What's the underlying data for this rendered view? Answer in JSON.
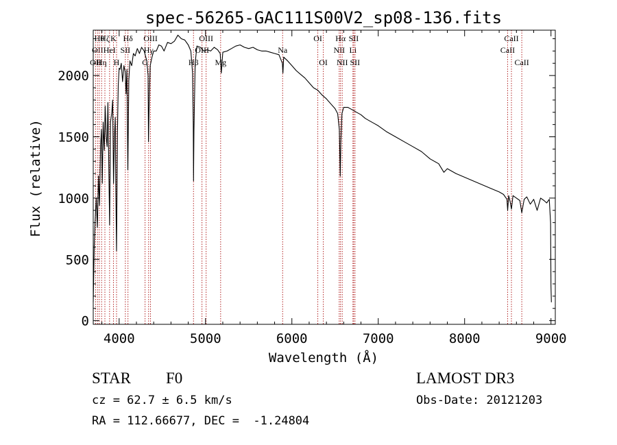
{
  "chart_data": {
    "type": "line",
    "title": "spec-56265-GAC111S00V2_sp08-136.fits",
    "xlabel": "Wavelength (Å)",
    "ylabel": "Flux (relative)",
    "xlim": [
      3700,
      9050
    ],
    "ylim": [
      -30,
      2370
    ],
    "xticks": [
      4000,
      5000,
      6000,
      7000,
      8000,
      9000
    ],
    "yticks": [
      0,
      500,
      1000,
      1500,
      2000
    ],
    "series": [
      {
        "name": "flux",
        "points": [
          [
            3700,
            150
          ],
          [
            3712,
            620
          ],
          [
            3722,
            820
          ],
          [
            3735,
            1000
          ],
          [
            3748,
            760
          ],
          [
            3760,
            1180
          ],
          [
            3772,
            940
          ],
          [
            3785,
            1420
          ],
          [
            3795,
            1560
          ],
          [
            3805,
            1120
          ],
          [
            3815,
            1620
          ],
          [
            3828,
            1390
          ],
          [
            3838,
            1750
          ],
          [
            3850,
            1500
          ],
          [
            3860,
            1420
          ],
          [
            3870,
            1780
          ],
          [
            3880,
            1250
          ],
          [
            3890,
            780
          ],
          [
            3900,
            1620
          ],
          [
            3915,
            1700
          ],
          [
            3925,
            1800
          ],
          [
            3935,
            1120
          ],
          [
            3945,
            1500
          ],
          [
            3955,
            1660
          ],
          [
            3962,
            1040
          ],
          [
            3970,
            570
          ],
          [
            3980,
            1540
          ],
          [
            3990,
            1920
          ],
          [
            4000,
            2060
          ],
          [
            4010,
            2050
          ],
          [
            4025,
            2100
          ],
          [
            4040,
            1950
          ],
          [
            4055,
            2080
          ],
          [
            4070,
            2030
          ],
          [
            4080,
            1850
          ],
          [
            4090,
            2050
          ],
          [
            4101,
            1230
          ],
          [
            4112,
            1960
          ],
          [
            4125,
            2120
          ],
          [
            4145,
            2080
          ],
          [
            4165,
            2180
          ],
          [
            4185,
            2160
          ],
          [
            4210,
            2220
          ],
          [
            4235,
            2180
          ],
          [
            4260,
            2230
          ],
          [
            4290,
            2200
          ],
          [
            4320,
            2120
          ],
          [
            4335,
            2000
          ],
          [
            4340,
            1460
          ],
          [
            4348,
            1780
          ],
          [
            4360,
            2080
          ],
          [
            4380,
            2150
          ],
          [
            4400,
            2200
          ],
          [
            4430,
            2200
          ],
          [
            4460,
            2250
          ],
          [
            4490,
            2240
          ],
          [
            4520,
            2200
          ],
          [
            4560,
            2270
          ],
          [
            4600,
            2260
          ],
          [
            4640,
            2280
          ],
          [
            4680,
            2330
          ],
          [
            4720,
            2300
          ],
          [
            4760,
            2290
          ],
          [
            4800,
            2250
          ],
          [
            4830,
            2200
          ],
          [
            4850,
            2020
          ],
          [
            4858,
            1600
          ],
          [
            4861,
            1140
          ],
          [
            4866,
            1550
          ],
          [
            4880,
            2100
          ],
          [
            4900,
            2240
          ],
          [
            4940,
            2230
          ],
          [
            4980,
            2200
          ],
          [
            5020,
            2210
          ],
          [
            5060,
            2200
          ],
          [
            5100,
            2230
          ],
          [
            5140,
            2210
          ],
          [
            5170,
            2180
          ],
          [
            5183,
            2020
          ],
          [
            5200,
            2190
          ],
          [
            5250,
            2200
          ],
          [
            5300,
            2220
          ],
          [
            5350,
            2240
          ],
          [
            5400,
            2250
          ],
          [
            5450,
            2230
          ],
          [
            5500,
            2220
          ],
          [
            5550,
            2230
          ],
          [
            5600,
            2210
          ],
          [
            5650,
            2200
          ],
          [
            5700,
            2200
          ],
          [
            5750,
            2190
          ],
          [
            5800,
            2180
          ],
          [
            5850,
            2170
          ],
          [
            5890,
            2100
          ],
          [
            5896,
            2020
          ],
          [
            5905,
            2150
          ],
          [
            5950,
            2120
          ],
          [
            6000,
            2080
          ],
          [
            6050,
            2040
          ],
          [
            6100,
            2010
          ],
          [
            6150,
            1980
          ],
          [
            6200,
            1940
          ],
          [
            6250,
            1900
          ],
          [
            6300,
            1880
          ],
          [
            6350,
            1840
          ],
          [
            6400,
            1810
          ],
          [
            6450,
            1770
          ],
          [
            6500,
            1730
          ],
          [
            6530,
            1690
          ],
          [
            6550,
            1560
          ],
          [
            6560,
            1180
          ],
          [
            6566,
            1450
          ],
          [
            6580,
            1690
          ],
          [
            6600,
            1740
          ],
          [
            6650,
            1740
          ],
          [
            6700,
            1720
          ],
          [
            6750,
            1700
          ],
          [
            6800,
            1680
          ],
          [
            6850,
            1650
          ],
          [
            6900,
            1630
          ],
          [
            6950,
            1610
          ],
          [
            7000,
            1590
          ],
          [
            7100,
            1540
          ],
          [
            7200,
            1500
          ],
          [
            7300,
            1460
          ],
          [
            7400,
            1420
          ],
          [
            7500,
            1380
          ],
          [
            7600,
            1320
          ],
          [
            7700,
            1280
          ],
          [
            7760,
            1210
          ],
          [
            7800,
            1240
          ],
          [
            7900,
            1200
          ],
          [
            8000,
            1170
          ],
          [
            8100,
            1140
          ],
          [
            8200,
            1110
          ],
          [
            8300,
            1080
          ],
          [
            8400,
            1050
          ],
          [
            8450,
            1030
          ],
          [
            8490,
            990
          ],
          [
            8498,
            900
          ],
          [
            8510,
            1020
          ],
          [
            8530,
            960
          ],
          [
            8542,
            910
          ],
          [
            8560,
            1020
          ],
          [
            8600,
            1000
          ],
          [
            8640,
            980
          ],
          [
            8662,
            880
          ],
          [
            8690,
            990
          ],
          [
            8720,
            1010
          ],
          [
            8760,
            950
          ],
          [
            8800,
            990
          ],
          [
            8840,
            900
          ],
          [
            8880,
            1000
          ],
          [
            8920,
            980
          ],
          [
            8950,
            960
          ],
          [
            8980,
            990
          ],
          [
            8995,
            800
          ],
          [
            9000,
            280
          ],
          [
            9005,
            150
          ]
        ]
      }
    ],
    "lines": [
      {
        "x": 3727,
        "label": "OII",
        "row": 2
      },
      {
        "x": 3750,
        "label": "OII",
        "row": 1
      },
      {
        "x": 3770,
        "label": "Hθ",
        "row": 0
      },
      {
        "x": 3797,
        "label": "Hη",
        "row": 2
      },
      {
        "x": 3835,
        "label": "Hζ",
        "row": 0
      },
      {
        "x": 3889,
        "label": "HeI",
        "row": 1
      },
      {
        "x": 3934,
        "label": "K",
        "row": 0
      },
      {
        "x": 3970,
        "label": "H",
        "row": 2
      },
      {
        "x": 4072,
        "label": "SII",
        "row": 1
      },
      {
        "x": 4102,
        "label": "Hδ",
        "row": 0
      },
      {
        "x": 4300,
        "label": "G",
        "row": 2
      },
      {
        "x": 4341,
        "label": "Hγ",
        "row": 1
      },
      {
        "x": 4363,
        "label": "OIII",
        "row": 0
      },
      {
        "x": 4861,
        "label": "Hβ",
        "row": 2
      },
      {
        "x": 4959,
        "label": "OIII",
        "row": 1
      },
      {
        "x": 5007,
        "label": "OIII",
        "row": 0
      },
      {
        "x": 5175,
        "label": "Mg",
        "row": 2
      },
      {
        "x": 5893,
        "label": "Na",
        "row": 1
      },
      {
        "x": 6300,
        "label": "OI",
        "row": 0
      },
      {
        "x": 6364,
        "label": "OI",
        "row": 2
      },
      {
        "x": 6548,
        "label": "NII",
        "row": 1
      },
      {
        "x": 6563,
        "label": "Hα",
        "row": 0
      },
      {
        "x": 6583,
        "label": "NII",
        "row": 2
      },
      {
        "x": 6707,
        "label": "Li",
        "row": 1
      },
      {
        "x": 6716,
        "label": "SII",
        "row": 0
      },
      {
        "x": 6731,
        "label": "SII",
        "row": 2
      },
      {
        "x": 8498,
        "label": "CaII",
        "row": 1
      },
      {
        "x": 8542,
        "label": "CaII",
        "row": 0
      },
      {
        "x": 8662,
        "label": "CaII",
        "row": 2
      }
    ]
  },
  "info": {
    "object_class": "STAR",
    "subclass": "F0",
    "survey": "LAMOST DR3",
    "cz": "cz = 62.7 ± 6.5 km/s",
    "obs_date": "Obs-Date: 20121203",
    "coords": "RA = 112.66677, DEC =  -1.24804"
  },
  "colors": {
    "spectrum": "#000000",
    "line_markers": "#b22222",
    "axes": "#000000",
    "background": "#ffffff"
  }
}
